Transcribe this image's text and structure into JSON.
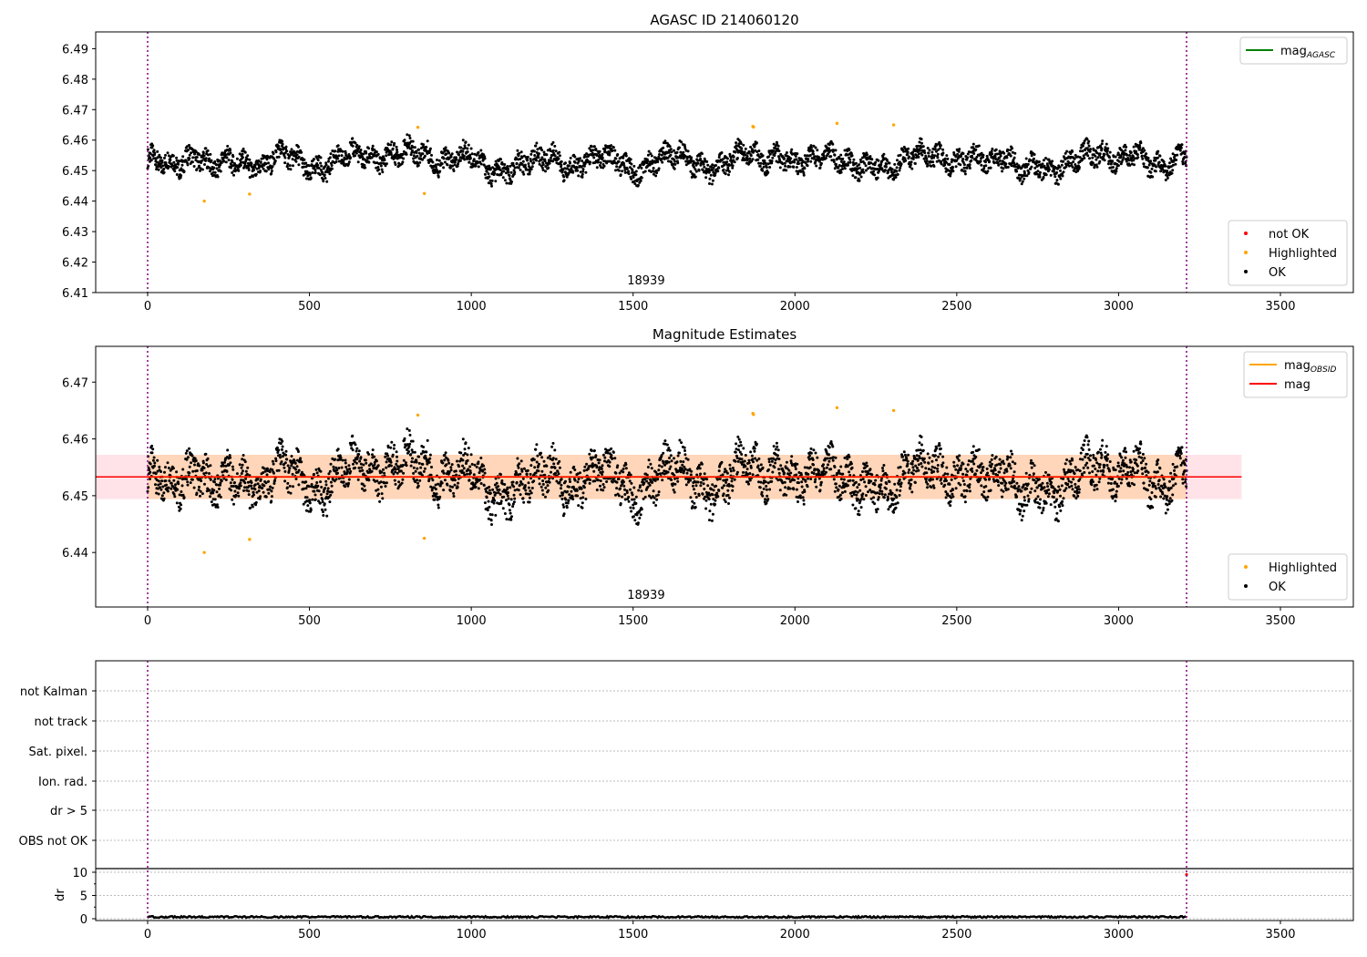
{
  "chart_data": [
    {
      "type": "scatter",
      "title": "AGASC ID 214060120",
      "xlim": [
        -160,
        3725
      ],
      "ylim": [
        6.41,
        6.4955
      ],
      "xticks": [
        0,
        500,
        1000,
        1500,
        2000,
        2500,
        3000,
        3500
      ],
      "yticks": [
        "6.41",
        "6.42",
        "6.43",
        "6.44",
        "6.45",
        "6.46",
        "6.47",
        "6.48",
        "6.49"
      ],
      "obsid_label": "18939",
      "obsid_label_x": 1540,
      "vlines": [
        0,
        3210
      ],
      "legend_lines": [
        {
          "label": "mag",
          "sub": "AGASC",
          "color": "#008000"
        }
      ],
      "legend_points": [
        {
          "label": "not OK",
          "color": "#ff0000"
        },
        {
          "label": "Highlighted",
          "color": "#ffa500"
        },
        {
          "label": "OK",
          "color": "#000000"
        }
      ]
    },
    {
      "type": "scatter",
      "title": "Magnitude Estimates",
      "xlim": [
        -160,
        3725
      ],
      "ylim": [
        6.4304,
        6.4763
      ],
      "xticks": [
        0,
        500,
        1000,
        1500,
        2000,
        2500,
        3000,
        3500
      ],
      "yticks": [
        "6.44",
        "6.45",
        "6.46",
        "6.47"
      ],
      "obsid_label": "18939",
      "obsid_label_x": 1540,
      "mean_mag": 6.4533,
      "band": [
        6.4494,
        6.4572
      ],
      "band_x_end": 3380,
      "legend_lines": [
        {
          "label": "mag",
          "sub": "OBSID",
          "color": "#ffa500"
        },
        {
          "label": "mag",
          "sub": "",
          "color": "#ff0000"
        }
      ],
      "legend_points": [
        {
          "label": "Highlighted",
          "color": "#ffa500"
        },
        {
          "label": "OK",
          "color": "#000000"
        }
      ]
    },
    {
      "type": "scatter",
      "flags": [
        "not Kalman",
        "not track",
        "Sat. pixel.",
        "Ion. rad.",
        "dr > 5",
        "OBS not OK"
      ],
      "dr_ylabel": "dr",
      "dr_yticks": [
        "0",
        "5",
        "10"
      ],
      "dr_typical": 0.2,
      "xticks": [
        0,
        500,
        1000,
        1500,
        2000,
        2500,
        3000,
        3500
      ]
    }
  ],
  "series": {
    "x_step": 50,
    "mag_samples": [
      6.454,
      6.453,
      6.452,
      6.455,
      6.451,
      6.454,
      6.452,
      6.45,
      6.456,
      6.455,
      6.45,
      6.451,
      6.455,
      6.456,
      6.453,
      6.455,
      6.457,
      6.456,
      6.452,
      6.454,
      6.456,
      6.45,
      6.449,
      6.452,
      6.454,
      6.455,
      6.45,
      6.453,
      6.455,
      6.454,
      6.449,
      6.452,
      6.455,
      6.456,
      6.451,
      6.45,
      6.454,
      6.457,
      6.453,
      6.455,
      6.452,
      6.454,
      6.456,
      6.453,
      6.451,
      6.452,
      6.45,
      6.455,
      6.456,
      6.454,
      6.452,
      6.455,
      6.453,
      6.455,
      6.45,
      6.452,
      6.449,
      6.453,
      6.456,
      6.455,
      6.453,
      6.456,
      6.452,
      6.451,
      6.456
    ],
    "highlighted": [
      [
        175,
        6.44
      ],
      [
        315,
        6.4423
      ],
      [
        835,
        6.4642
      ],
      [
        855,
        6.4425
      ],
      [
        1870,
        6.4645
      ],
      [
        1872,
        6.4643
      ],
      [
        2130,
        6.4655
      ],
      [
        2305,
        6.465
      ]
    ]
  }
}
